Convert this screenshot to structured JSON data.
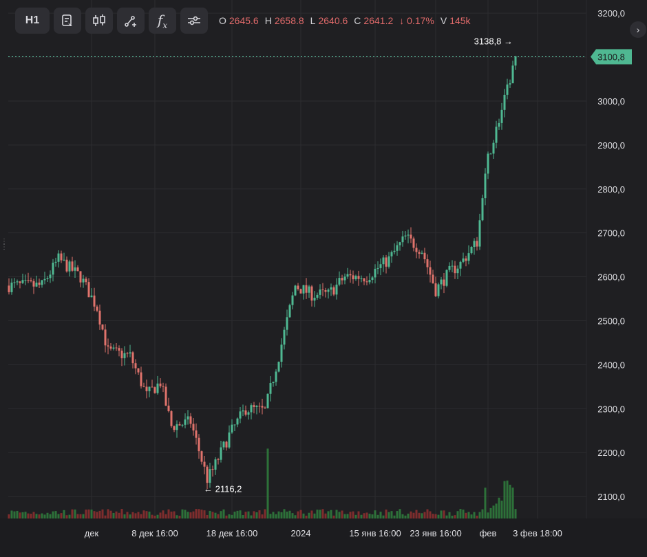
{
  "toolbar": {
    "interval_label": "H1",
    "buttons": [
      "notes-icon",
      "candles-icon",
      "draw-icon",
      "formula-icon",
      "settings-icon"
    ],
    "formula_glyph": "f"
  },
  "ohlc": {
    "open_key": "O",
    "open": "2645.6",
    "high_key": "H",
    "high": "2658.8",
    "low_key": "L",
    "low": "2640.6",
    "close_key": "C",
    "close": "2641.2",
    "change": "↓ 0.17%",
    "vol_key": "V",
    "vol": "145k"
  },
  "colors": {
    "up": "#4fb892",
    "down": "#e0736c",
    "bg": "#1f1f22",
    "grid": "#2c2c30",
    "price_line": "#5fc0a0",
    "vol_up": "#2f7a3c",
    "vol_down": "#8a2f2f"
  },
  "chart_data": {
    "type": "candlestick",
    "ylim": [
      2050,
      3230
    ],
    "y_ticks": [
      "3200,0",
      "3100,0",
      "3000,0",
      "2900,0",
      "2800,0",
      "2700,0",
      "2600,0",
      "2500,0",
      "2400,0",
      "2300,0",
      "2200,0",
      "2100,0"
    ],
    "y_tick_values": [
      3200,
      3100,
      3000,
      2900,
      2800,
      2700,
      2600,
      2500,
      2400,
      2300,
      2200,
      2100
    ],
    "x_ticks": [
      "дек",
      "8 дек 16:00",
      "18 дек 16:00",
      "2024",
      "15 янв 16:00",
      "23 янв 16:00",
      "фев",
      "3 фев 18:00"
    ],
    "x_tick_index": [
      30,
      53,
      81,
      106,
      133,
      155,
      174,
      192
    ],
    "current_price": "3100,8",
    "current_value": 3100.8,
    "max_label": "3138,8 →",
    "max_value": 3138.8,
    "min_label": "← 2116,2",
    "min_value": 2116.2,
    "anchors": [
      [
        0,
        2580
      ],
      [
        12,
        2580
      ],
      [
        18,
        2640
      ],
      [
        26,
        2600
      ],
      [
        32,
        2530
      ],
      [
        36,
        2430
      ],
      [
        44,
        2420
      ],
      [
        50,
        2330
      ],
      [
        55,
        2360
      ],
      [
        59,
        2260
      ],
      [
        66,
        2270
      ],
      [
        72,
        2140
      ],
      [
        74,
        2160
      ],
      [
        80,
        2240
      ],
      [
        86,
        2300
      ],
      [
        93,
        2295
      ],
      [
        98,
        2420
      ],
      [
        104,
        2580
      ],
      [
        110,
        2560
      ],
      [
        116,
        2560
      ],
      [
        122,
        2600
      ],
      [
        130,
        2600
      ],
      [
        138,
        2640
      ],
      [
        144,
        2690
      ],
      [
        150,
        2660
      ],
      [
        155,
        2570
      ],
      [
        160,
        2610
      ],
      [
        164,
        2630
      ],
      [
        170,
        2680
      ],
      [
        174,
        2870
      ],
      [
        180,
        3000
      ],
      [
        184,
        3100
      ]
    ],
    "n_candles": 185
  }
}
